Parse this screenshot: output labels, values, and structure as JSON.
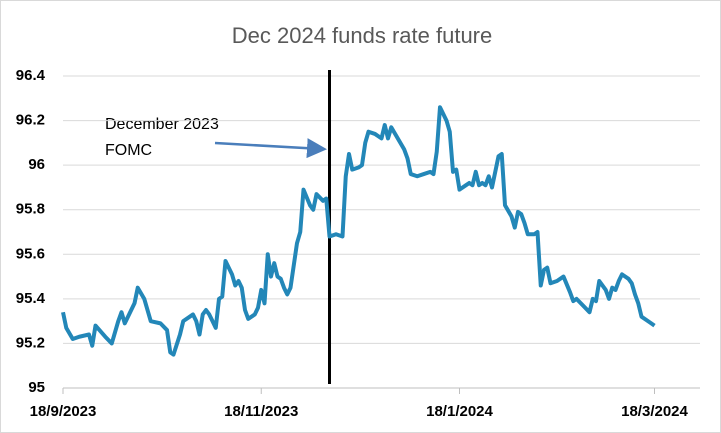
{
  "chart_data": {
    "type": "line",
    "title": "Dec 2024 funds rate future",
    "annotation": [
      "December 2023",
      "FOMC"
    ],
    "vline": "9/12/2023",
    "xlim": [
      "18/9/2023",
      "1/4/2024"
    ],
    "xticks": [
      "18/9/2023",
      "18/11/2023",
      "18/1/2024",
      "18/3/2024"
    ],
    "ylim": [
      95,
      96.4
    ],
    "yticks": [
      95,
      95.2,
      95.4,
      95.6,
      95.8,
      96,
      96.2,
      96.4
    ],
    "grid": true,
    "x": [
      "18/9/2023",
      "19/9/2023",
      "21/9/2023",
      "23/9/2023",
      "26/9/2023",
      "27/9/2023",
      "28/9/2023",
      "1/10/2023",
      "3/10/2023",
      "5/10/2023",
      "6/10/2023",
      "7/10/2023",
      "10/10/2023",
      "11/10/2023",
      "13/10/2023",
      "15/10/2023",
      "18/10/2023",
      "20/10/2023",
      "21/10/2023",
      "22/10/2023",
      "24/10/2023",
      "25/10/2023",
      "27/10/2023",
      "28/10/2023",
      "29/10/2023",
      "30/10/2023",
      "31/10/2023",
      "1/11/2023",
      "2/11/2023",
      "3/11/2023",
      "4/11/2023",
      "5/11/2023",
      "6/11/2023",
      "7/11/2023",
      "9/11/2023",
      "10/11/2023",
      "11/11/2023",
      "12/11/2023",
      "13/11/2023",
      "14/11/2023",
      "16/11/2023",
      "17/11/2023",
      "18/11/2023",
      "19/11/2023",
      "20/11/2023",
      "21/11/2023",
      "22/11/2023",
      "23/11/2023",
      "24/11/2023",
      "25/11/2023",
      "26/11/2023",
      "27/11/2023",
      "29/11/2023",
      "30/11/2023",
      "1/12/2023",
      "3/12/2023",
      "4/12/2023",
      "5/12/2023",
      "7/12/2023",
      "8/12/2023",
      "9/12/2023",
      "11/12/2023",
      "13/12/2023",
      "14/12/2023",
      "15/12/2023",
      "16/12/2023",
      "18/12/2023",
      "19/12/2023",
      "20/12/2023",
      "21/12/2023",
      "23/12/2023",
      "25/12/2023",
      "26/12/2023",
      "27/12/2023",
      "28/12/2023",
      "30/12/2023",
      "1/1/2024",
      "2/1/2024",
      "3/1/2024",
      "5/1/2024",
      "7/1/2024",
      "9/1/2024",
      "10/1/2024",
      "11/1/2024",
      "12/1/2024",
      "14/1/2024",
      "15/1/2024",
      "16/1/2024",
      "17/1/2024",
      "18/1/2024",
      "20/1/2024",
      "21/1/2024",
      "22/1/2024",
      "23/1/2024",
      "24/1/2024",
      "25/1/2024",
      "26/1/2024",
      "27/1/2024",
      "28/1/2024",
      "30/1/2024",
      "31/1/2024",
      "1/2/2024",
      "3/2/2024",
      "4/2/2024",
      "5/2/2024",
      "6/2/2024",
      "7/2/2024",
      "8/2/2024",
      "10/2/2024",
      "11/2/2024",
      "12/2/2024",
      "13/2/2024",
      "14/2/2024",
      "15/2/2024",
      "17/2/2024",
      "19/2/2024",
      "21/2/2024",
      "22/2/2024",
      "23/2/2024",
      "25/2/2024",
      "27/2/2024",
      "28/2/2024",
      "29/2/2024",
      "1/3/2024",
      "3/3/2024",
      "4/3/2024",
      "5/3/2024",
      "6/3/2024",
      "7/3/2024",
      "8/3/2024",
      "10/3/2024",
      "11/3/2024",
      "12/3/2024",
      "13/3/2024",
      "14/3/2024",
      "16/3/2024",
      "18/3/2024"
    ],
    "series": [
      {
        "color": "#2387b8",
        "values": [
          95.34,
          95.27,
          95.22,
          95.23,
          95.24,
          95.19,
          95.28,
          95.23,
          95.2,
          95.3,
          95.34,
          95.29,
          95.38,
          95.45,
          95.4,
          95.3,
          95.29,
          95.26,
          95.16,
          95.15,
          95.24,
          95.3,
          95.32,
          95.33,
          95.3,
          95.24,
          95.33,
          95.35,
          95.33,
          95.3,
          95.27,
          95.4,
          95.41,
          95.57,
          95.51,
          95.46,
          95.48,
          95.45,
          95.35,
          95.31,
          95.33,
          95.36,
          95.44,
          95.38,
          95.6,
          95.5,
          95.56,
          95.5,
          95.49,
          95.45,
          95.42,
          95.45,
          95.65,
          95.7,
          95.89,
          95.82,
          95.8,
          95.87,
          95.84,
          95.85,
          95.68,
          95.69,
          95.68,
          95.95,
          96.05,
          95.98,
          95.99,
          96.0,
          96.1,
          96.15,
          96.14,
          96.12,
          96.18,
          96.12,
          96.17,
          96.12,
          96.07,
          96.03,
          95.96,
          95.95,
          95.96,
          95.97,
          95.96,
          96.06,
          96.26,
          96.2,
          96.15,
          95.97,
          95.98,
          95.89,
          95.91,
          95.92,
          95.91,
          95.97,
          95.91,
          95.92,
          95.91,
          95.95,
          95.9,
          96.04,
          96.05,
          95.82,
          95.77,
          95.72,
          95.79,
          95.78,
          95.74,
          95.69,
          95.69,
          95.7,
          95.46,
          95.53,
          95.54,
          95.47,
          95.48,
          95.5,
          95.43,
          95.39,
          95.4,
          95.37,
          95.34,
          95.4,
          95.39,
          95.48,
          95.44,
          95.4,
          95.45,
          95.44,
          95.48,
          95.51,
          95.49,
          95.47,
          95.42,
          95.38,
          95.32,
          95.3,
          95.28
        ]
      }
    ]
  }
}
